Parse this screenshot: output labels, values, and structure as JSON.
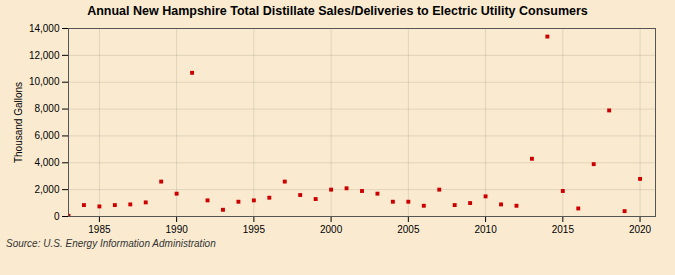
{
  "chart_data": {
    "type": "scatter",
    "title": "Annual New Hampshire Total Distillate Sales/Deliveries to Electric Utility Consumers",
    "ylabel": "Thousand Gallons",
    "annotation": "Source: U.S. Energy Information Administration",
    "x": [
      1983,
      1984,
      1985,
      1986,
      1987,
      1988,
      1989,
      1990,
      1991,
      1992,
      1993,
      1994,
      1995,
      1996,
      1997,
      1998,
      1999,
      2000,
      2001,
      2002,
      2003,
      2004,
      2005,
      2006,
      2007,
      2008,
      2009,
      2010,
      2011,
      2012,
      2013,
      2014,
      2015,
      2016,
      2017,
      2018,
      2019,
      2020
    ],
    "values": [
      50,
      850,
      750,
      850,
      900,
      1050,
      2600,
      1700,
      10700,
      1200,
      500,
      1100,
      1200,
      1400,
      2600,
      1600,
      1300,
      2000,
      2100,
      1900,
      1700,
      1100,
      1100,
      800,
      2000,
      850,
      1000,
      1500,
      900,
      800,
      4300,
      13400,
      1900,
      600,
      3900,
      7900,
      400,
      2800
    ],
    "color": "#cc0000",
    "marker": "square",
    "xlim": [
      1983,
      2021
    ],
    "ylim": [
      0,
      14000
    ],
    "xticks": [
      1985,
      1990,
      1995,
      2000,
      2005,
      2010,
      2015,
      2020
    ],
    "yticks": [
      0,
      {
        "value": 2000,
        "label": "2,000"
      },
      {
        "value": 4000,
        "label": "4,000"
      },
      {
        "value": 6000,
        "label": "6,000"
      },
      {
        "value": 8000,
        "label": "8,000"
      },
      {
        "value": 10000,
        "label": "10,000"
      },
      {
        "value": 12000,
        "label": "12,000"
      },
      {
        "value": 14000,
        "label": "14,000"
      }
    ],
    "grid": true
  }
}
